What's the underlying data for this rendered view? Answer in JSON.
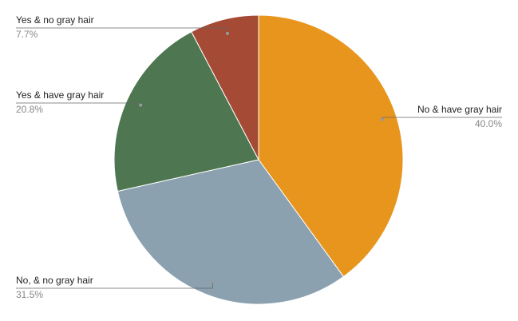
{
  "chart_data": {
    "type": "pie",
    "categories": [
      "No & have gray hair",
      "No, & no gray hair",
      "Yes & have gray hair",
      "Yes & no gray hair"
    ],
    "values": [
      40.0,
      31.5,
      20.8,
      7.7
    ],
    "value_labels": [
      "40.0%",
      "31.5%",
      "20.8%",
      "7.7%"
    ],
    "colors": [
      "#e8951e",
      "#8ba1b0",
      "#4e7650",
      "#a44a35"
    ]
  }
}
